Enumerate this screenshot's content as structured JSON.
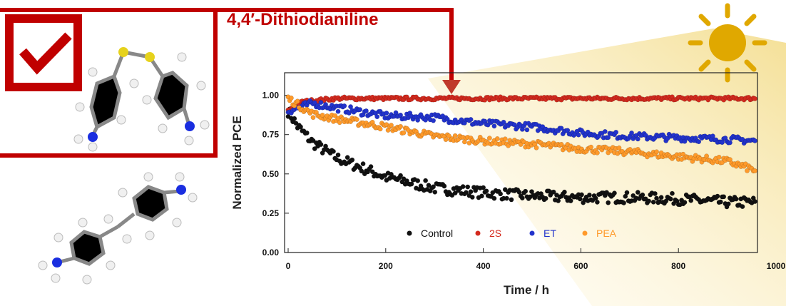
{
  "headline": "4,4′-Dithiodianiline",
  "colors": {
    "frame": "#c00000",
    "sun": "#e0a800",
    "control": "#111111",
    "s2": "#d42a1e",
    "et": "#2233cc",
    "pea": "#ff9a2a"
  },
  "icons": [
    "checkmark-icon",
    "sun-icon",
    "down-arrow-icon"
  ],
  "chart_data": {
    "type": "scatter",
    "title": "",
    "xlabel": "Time / h",
    "ylabel": "Normalized PCE",
    "xlim": [
      -7,
      960
    ],
    "ylim": [
      0,
      1.14
    ],
    "xticks": [
      0,
      200,
      400,
      600,
      800,
      1000
    ],
    "yticks": [
      0.0,
      0.25,
      0.5,
      0.75,
      1.0
    ],
    "xtick_labels": [
      "0",
      "200",
      "400",
      "600",
      "800",
      "1000"
    ],
    "ytick_labels": [
      "0.00",
      "0.25",
      "0.50",
      "0.75",
      "1.00"
    ],
    "legend": {
      "placement": "bottom-center",
      "entries": [
        "Control",
        "2S",
        "ET",
        "PEA"
      ]
    },
    "series": [
      {
        "name": "Control",
        "color": "#111111",
        "x": [
          0,
          20,
          50,
          100,
          200,
          300,
          400,
          500,
          600,
          700,
          800,
          900,
          960
        ],
        "y": [
          0.9,
          0.8,
          0.7,
          0.6,
          0.48,
          0.41,
          0.38,
          0.36,
          0.35,
          0.35,
          0.34,
          0.32,
          0.32
        ]
      },
      {
        "name": "2S",
        "color": "#d42a1e",
        "x": [
          0,
          30,
          100,
          300,
          500,
          700,
          900,
          960
        ],
        "y": [
          0.9,
          0.96,
          0.98,
          0.98,
          0.98,
          0.98,
          0.98,
          0.98
        ]
      },
      {
        "name": "ET",
        "color": "#2233cc",
        "x": [
          0,
          50,
          100,
          200,
          300,
          400,
          500,
          600,
          700,
          800,
          900,
          960
        ],
        "y": [
          0.9,
          0.95,
          0.92,
          0.87,
          0.86,
          0.82,
          0.8,
          0.76,
          0.74,
          0.73,
          0.72,
          0.71
        ]
      },
      {
        "name": "PEA",
        "color": "#ff9a2a",
        "x": [
          0,
          50,
          100,
          200,
          300,
          400,
          500,
          600,
          700,
          800,
          900,
          960
        ],
        "y": [
          0.98,
          0.88,
          0.85,
          0.8,
          0.74,
          0.71,
          0.69,
          0.66,
          0.64,
          0.61,
          0.58,
          0.52
        ]
      }
    ]
  }
}
